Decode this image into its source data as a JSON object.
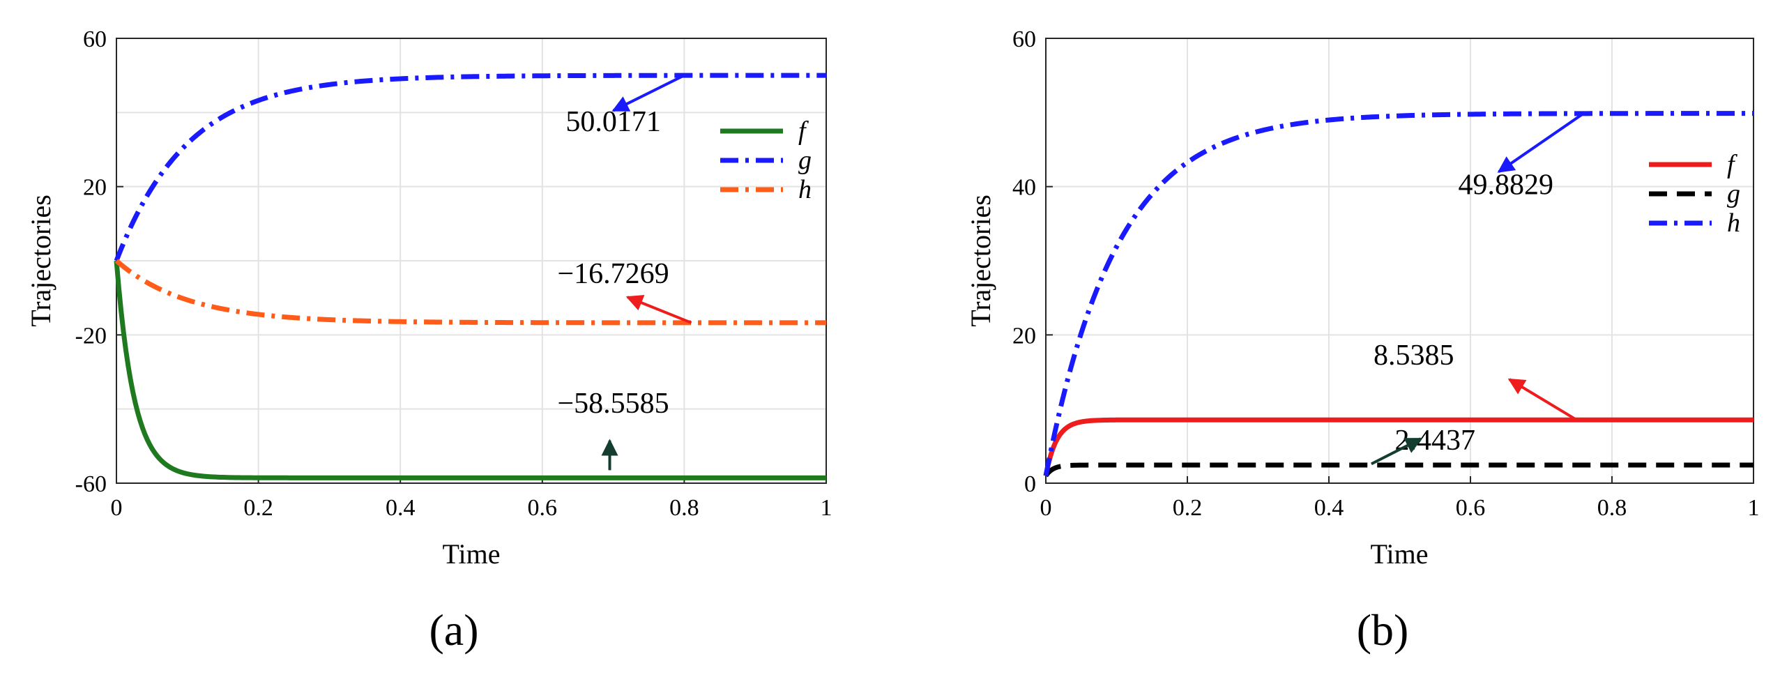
{
  "chart_data": [
    {
      "type": "line",
      "panel_label": "(a)",
      "xlabel": "Time",
      "ylabel": "Trajectories",
      "xlim": [
        0,
        1
      ],
      "ylim": [
        -60,
        60
      ],
      "xticks": [
        "0",
        "0.2",
        "0.4",
        "0.6",
        "0.8",
        "1"
      ],
      "yticks": [
        "-60",
        "-20",
        "20",
        "60"
      ],
      "grid": true,
      "legend_position": "right",
      "series": [
        {
          "name": "f",
          "start": 0,
          "final": -58.5585,
          "tau": 0.025,
          "color": "#1f7a1f",
          "dash": "solid"
        },
        {
          "name": "g",
          "start": 0,
          "final": 50.0171,
          "tau": 0.1,
          "color": "#1a1aff",
          "dash": "dashdot"
        },
        {
          "name": "h",
          "start": 0,
          "final": -16.7269,
          "tau": 0.1,
          "color": "#ff5c1a",
          "dash": "dashdot"
        }
      ],
      "annotations": [
        {
          "text": "50.0171",
          "color": "#1a1aff",
          "x": 0.7,
          "y": 35,
          "point_x": 0.8,
          "point_y": 50.0171
        },
        {
          "text": "−16.7269",
          "color": "#ee1c1c",
          "x": 0.7,
          "y": -6,
          "point_x": 0.8,
          "point_y": -16.7269
        },
        {
          "text": "−58.5585",
          "color": "#133d2f",
          "x": 0.7,
          "y": -41,
          "point_x": 0.7,
          "point_y": -56
        }
      ]
    },
    {
      "type": "line",
      "panel_label": "(b)",
      "xlabel": "Time",
      "ylabel": "Trajectories",
      "xlim": [
        0,
        1
      ],
      "ylim": [
        0,
        60
      ],
      "xticks": [
        "0",
        "0.2",
        "0.4",
        "0.6",
        "0.8",
        "1"
      ],
      "yticks": [
        "0",
        "20",
        "40",
        "60"
      ],
      "grid": true,
      "legend_position": "right",
      "series": [
        {
          "name": "f",
          "start": 1,
          "final": 8.5385,
          "tau": 0.015,
          "color": "#ee1c1c",
          "dash": "solid"
        },
        {
          "name": "g",
          "start": 1,
          "final": 2.4437,
          "tau": 0.01,
          "color": "#000000",
          "dash": "dashed"
        },
        {
          "name": "h",
          "start": 1,
          "final": 49.8829,
          "tau": 0.1,
          "color": "#1a1aff",
          "dash": "dashdot"
        }
      ],
      "annotations": [
        {
          "text": "49.8829",
          "color": "#1a1aff",
          "x": 0.65,
          "y": 39,
          "point_x": 0.75,
          "point_y": 49.8829
        },
        {
          "text": "8.5385",
          "color": "#ee1c1c",
          "x": 0.52,
          "y": 16,
          "point_x": 0.75,
          "point_y": 8.5385
        },
        {
          "text": "2.4437",
          "color": "#133d2f",
          "x": 0.55,
          "y": 4.5,
          "point_x": 0.46,
          "point_y": 2.4437
        }
      ]
    }
  ]
}
